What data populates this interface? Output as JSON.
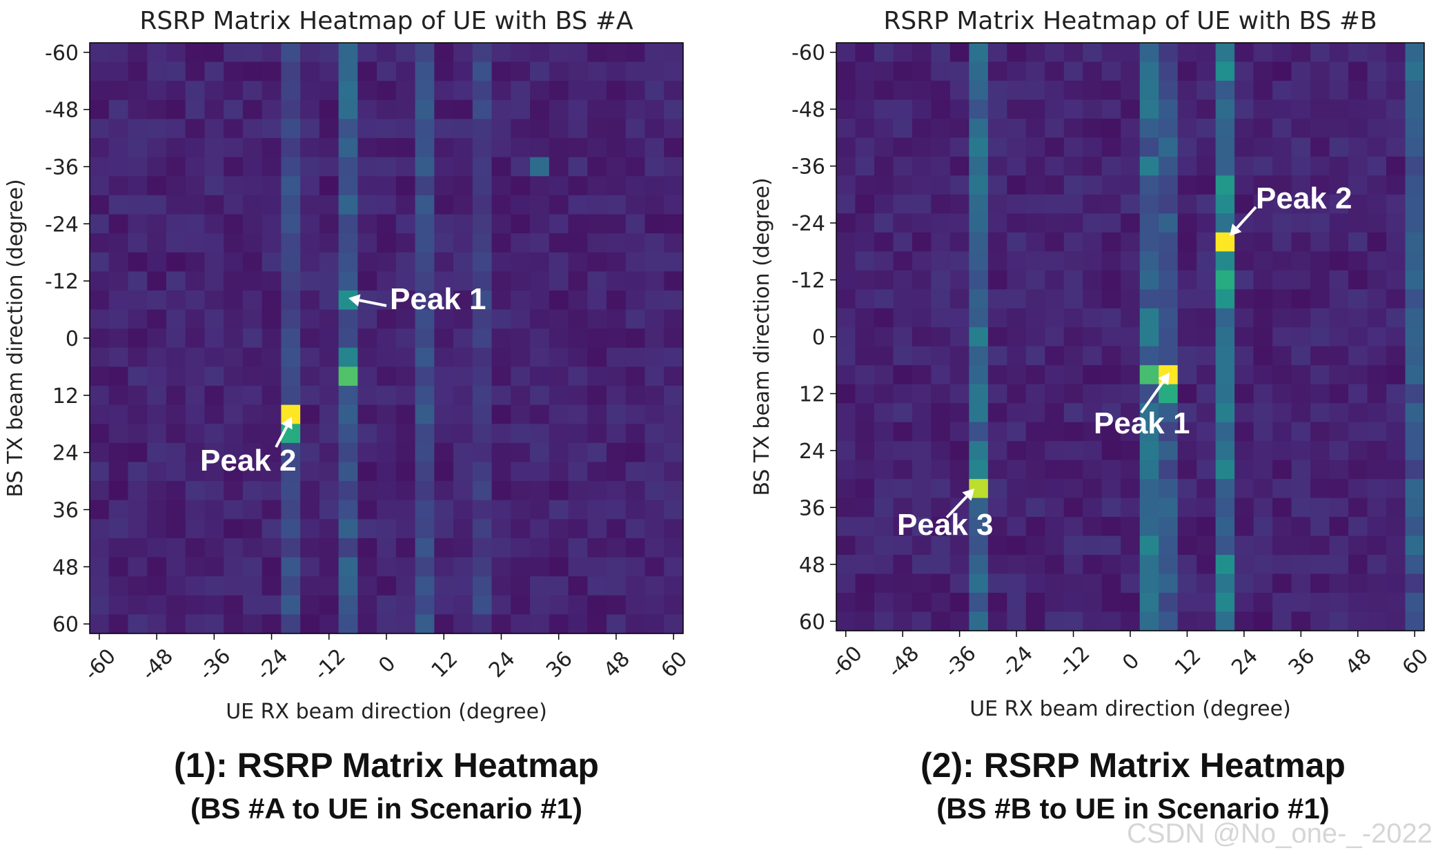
{
  "chart_data": [
    {
      "type": "heatmap",
      "title": "RSRP Matrix Heatmap of UE with BS #A",
      "xlabel": "UE RX beam direction (degree)",
      "ylabel": "BS TX beam direction (degree)",
      "xticks": [
        "-60",
        "-48",
        "-36",
        "-24",
        "-12",
        "0",
        "12",
        "24",
        "36",
        "48",
        "60"
      ],
      "yticks": [
        "-60",
        "-48",
        "-36",
        "-24",
        "-12",
        "0",
        "12",
        "24",
        "36",
        "48",
        "60"
      ],
      "xlim": [
        -62,
        62
      ],
      "ylim": [
        -62,
        62
      ],
      "y_direction": "down",
      "cell_size_deg": 4,
      "colormap": "viridis",
      "peaks": [
        {
          "label": "Peak 1",
          "ue_rx_deg": -8,
          "bs_tx_deg": 8,
          "value": 0.72
        },
        {
          "label": "Peak 2",
          "ue_rx_deg": -20,
          "bs_tx_deg": 16,
          "value": 1.0
        }
      ],
      "highlighted_cells": [
        {
          "ue_rx_deg": -8,
          "bs_tx_deg": -8,
          "value": 0.5
        },
        {
          "ue_rx_deg": -8,
          "bs_tx_deg": 4,
          "value": 0.45
        },
        {
          "ue_rx_deg": -20,
          "bs_tx_deg": 20,
          "value": 0.62
        },
        {
          "ue_rx_deg": 32,
          "bs_tx_deg": -36,
          "value": 0.35
        }
      ],
      "bright_columns": [
        {
          "ue_rx_deg": -8,
          "level": 0.22
        },
        {
          "ue_rx_deg": -20,
          "level": 0.14
        },
        {
          "ue_rx_deg": 8,
          "level": 0.15
        },
        {
          "ue_rx_deg": 20,
          "level": 0.1
        }
      ]
    },
    {
      "type": "heatmap",
      "title": "RSRP Matrix Heatmap of UE with BS #B",
      "xlabel": "UE RX beam direction (degree)",
      "ylabel": "BS TX beam direction (degree)",
      "xticks": [
        "-60",
        "-48",
        "-36",
        "-24",
        "-12",
        "0",
        "12",
        "24",
        "36",
        "48",
        "60"
      ],
      "yticks": [
        "-60",
        "-48",
        "-36",
        "-24",
        "-12",
        "0",
        "12",
        "24",
        "36",
        "48",
        "60"
      ],
      "xlim": [
        -62,
        62
      ],
      "ylim": [
        -62,
        62
      ],
      "y_direction": "down",
      "cell_size_deg": 4,
      "colormap": "viridis",
      "peaks": [
        {
          "label": "Peak 1",
          "ue_rx_deg": 8,
          "bs_tx_deg": 8,
          "value": 1.0
        },
        {
          "label": "Peak 2",
          "ue_rx_deg": 20,
          "bs_tx_deg": -20,
          "value": 1.0
        },
        {
          "label": "Peak 3",
          "ue_rx_deg": -32,
          "bs_tx_deg": 32,
          "value": 0.9
        }
      ],
      "highlighted_cells": [
        {
          "ue_rx_deg": 4,
          "bs_tx_deg": 8,
          "value": 0.7
        },
        {
          "ue_rx_deg": 8,
          "bs_tx_deg": 12,
          "value": 0.62
        },
        {
          "ue_rx_deg": 20,
          "bs_tx_deg": -12,
          "value": 0.62
        },
        {
          "ue_rx_deg": 20,
          "bs_tx_deg": -28,
          "value": 0.48
        },
        {
          "ue_rx_deg": -32,
          "bs_tx_deg": 28,
          "value": 0.45
        },
        {
          "ue_rx_deg": 4,
          "bs_tx_deg": 0,
          "value": 0.42
        }
      ],
      "bright_columns": [
        {
          "ue_rx_deg": 20,
          "level": 0.35
        },
        {
          "ue_rx_deg": 4,
          "level": 0.28
        },
        {
          "ue_rx_deg": -32,
          "level": 0.28
        },
        {
          "ue_rx_deg": 8,
          "level": 0.2
        },
        {
          "ue_rx_deg": 60,
          "level": 0.2
        }
      ]
    }
  ],
  "captions": [
    {
      "main": "(1): RSRP Matrix Heatmap",
      "sub": "(BS #A to UE in Scenario #1)"
    },
    {
      "main": "(2): RSRP Matrix Heatmap",
      "sub": "(BS #B to UE in Scenario #1)"
    }
  ],
  "watermark": "CSDN @No_one-_-2022"
}
